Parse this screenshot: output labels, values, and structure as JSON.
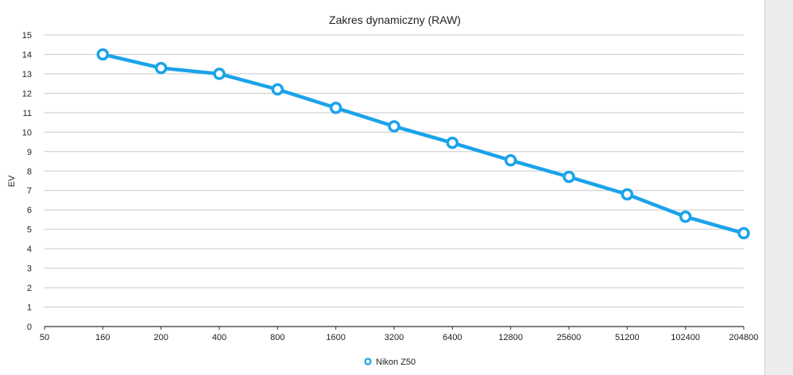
{
  "chart_data": {
    "type": "line",
    "title": "Zakres dynamiczny (RAW)",
    "xlabel": "",
    "ylabel": "EV",
    "categories": [
      "50",
      "160",
      "200",
      "400",
      "800",
      "1600",
      "3200",
      "6400",
      "12800",
      "25600",
      "51200",
      "102400",
      "204800"
    ],
    "yticks": [
      "0",
      "1",
      "2",
      "3",
      "4",
      "5",
      "6",
      "7",
      "8",
      "9",
      "10",
      "11",
      "12",
      "13",
      "14",
      "15"
    ],
    "ylim": [
      0,
      15
    ],
    "grid": true,
    "legend_position": "bottom",
    "series": [
      {
        "name": "Nikon Z50",
        "color": "#1aa3ea",
        "x": [
          "160",
          "200",
          "400",
          "800",
          "1600",
          "3200",
          "6400",
          "12800",
          "25600",
          "51200",
          "102400",
          "204800"
        ],
        "values": [
          14.0,
          13.3,
          13.0,
          12.2,
          11.25,
          10.3,
          9.45,
          8.55,
          7.7,
          6.8,
          5.65,
          4.8
        ]
      }
    ]
  }
}
